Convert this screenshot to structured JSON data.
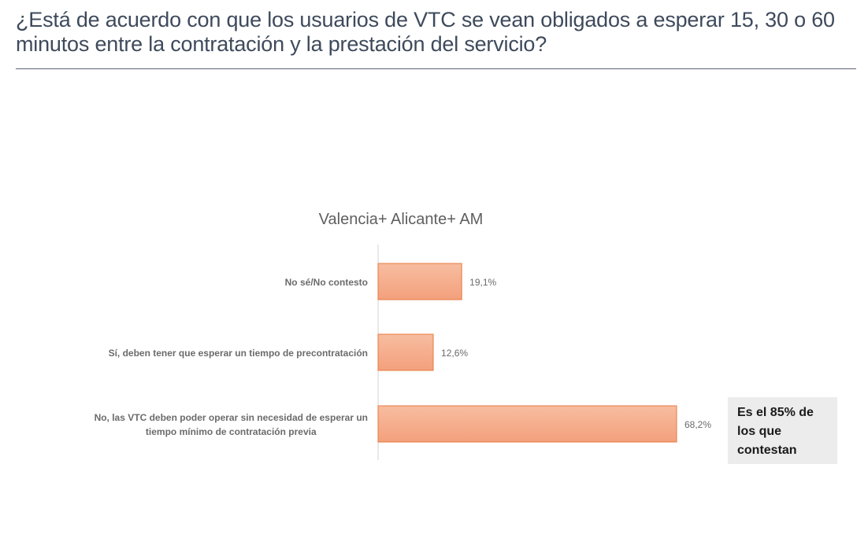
{
  "page": {
    "title": "¿Está de acuerdo con que los usuarios de VTC se vean obligados a esperar 15, 30 o 60 minutos entre la contratación y la prestación del servicio?"
  },
  "chart_data": {
    "type": "bar",
    "orientation": "horizontal",
    "title": "Valencia+ Alicante+ AM",
    "categories": [
      [
        "No sé/No contesto"
      ],
      [
        "Sí, deben tener que esperar un tiempo de precontratación"
      ],
      [
        "No, las VTC deben poder operar sin necesidad de esperar un",
        "tiempo mínimo de contratación previa"
      ]
    ],
    "values": [
      19.1,
      12.6,
      68.2
    ],
    "value_labels": [
      "19,1%",
      "12,6%",
      "68,2%"
    ],
    "unit": "%",
    "xlim": [
      0,
      100
    ],
    "grid": false,
    "legend": "none",
    "colors": {
      "bar_fill_top": "#f7bda0",
      "bar_fill_bottom": "#f3a07c",
      "bar_stroke": "#e8783f",
      "axis": "#d0d0d0",
      "label": "#6b6b6b",
      "chart_title": "#5f5f5f"
    }
  },
  "callout": {
    "text": "Es el 85% de los que contestan",
    "background": "#ececec"
  }
}
